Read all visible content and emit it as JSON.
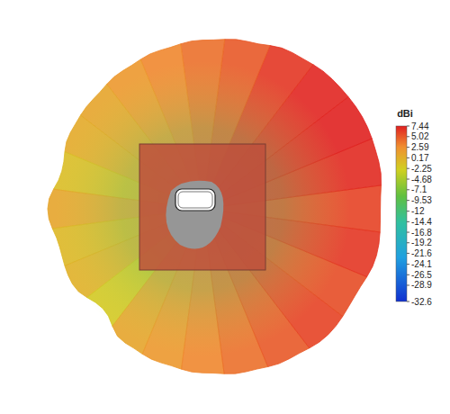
{
  "chart_data": {
    "type": "radiation_pattern",
    "colorbar_label": "dBi",
    "clim": [
      -32.6,
      7.44
    ],
    "cticks": [
      7.44,
      5.02,
      2.59,
      0.17,
      -2.25,
      -4.68,
      -7.1,
      -9.53,
      -12,
      -14.4,
      -16.8,
      -19.2,
      -21.6,
      -24.1,
      -26.5,
      -28.9,
      -32.6
    ],
    "azimuth": [
      0,
      15,
      30,
      45,
      60,
      75,
      90,
      105,
      120,
      135,
      150,
      165,
      180,
      195,
      210,
      225,
      240,
      255,
      270,
      285,
      300,
      315,
      330,
      345
    ],
    "gain": [
      6,
      7,
      7.4,
      7.2,
      6.5,
      5,
      4,
      3,
      2,
      1,
      0.5,
      -1,
      1,
      -0.5,
      0,
      -2,
      1,
      2,
      3,
      4,
      5,
      6,
      5.5,
      6.5
    ]
  }
}
